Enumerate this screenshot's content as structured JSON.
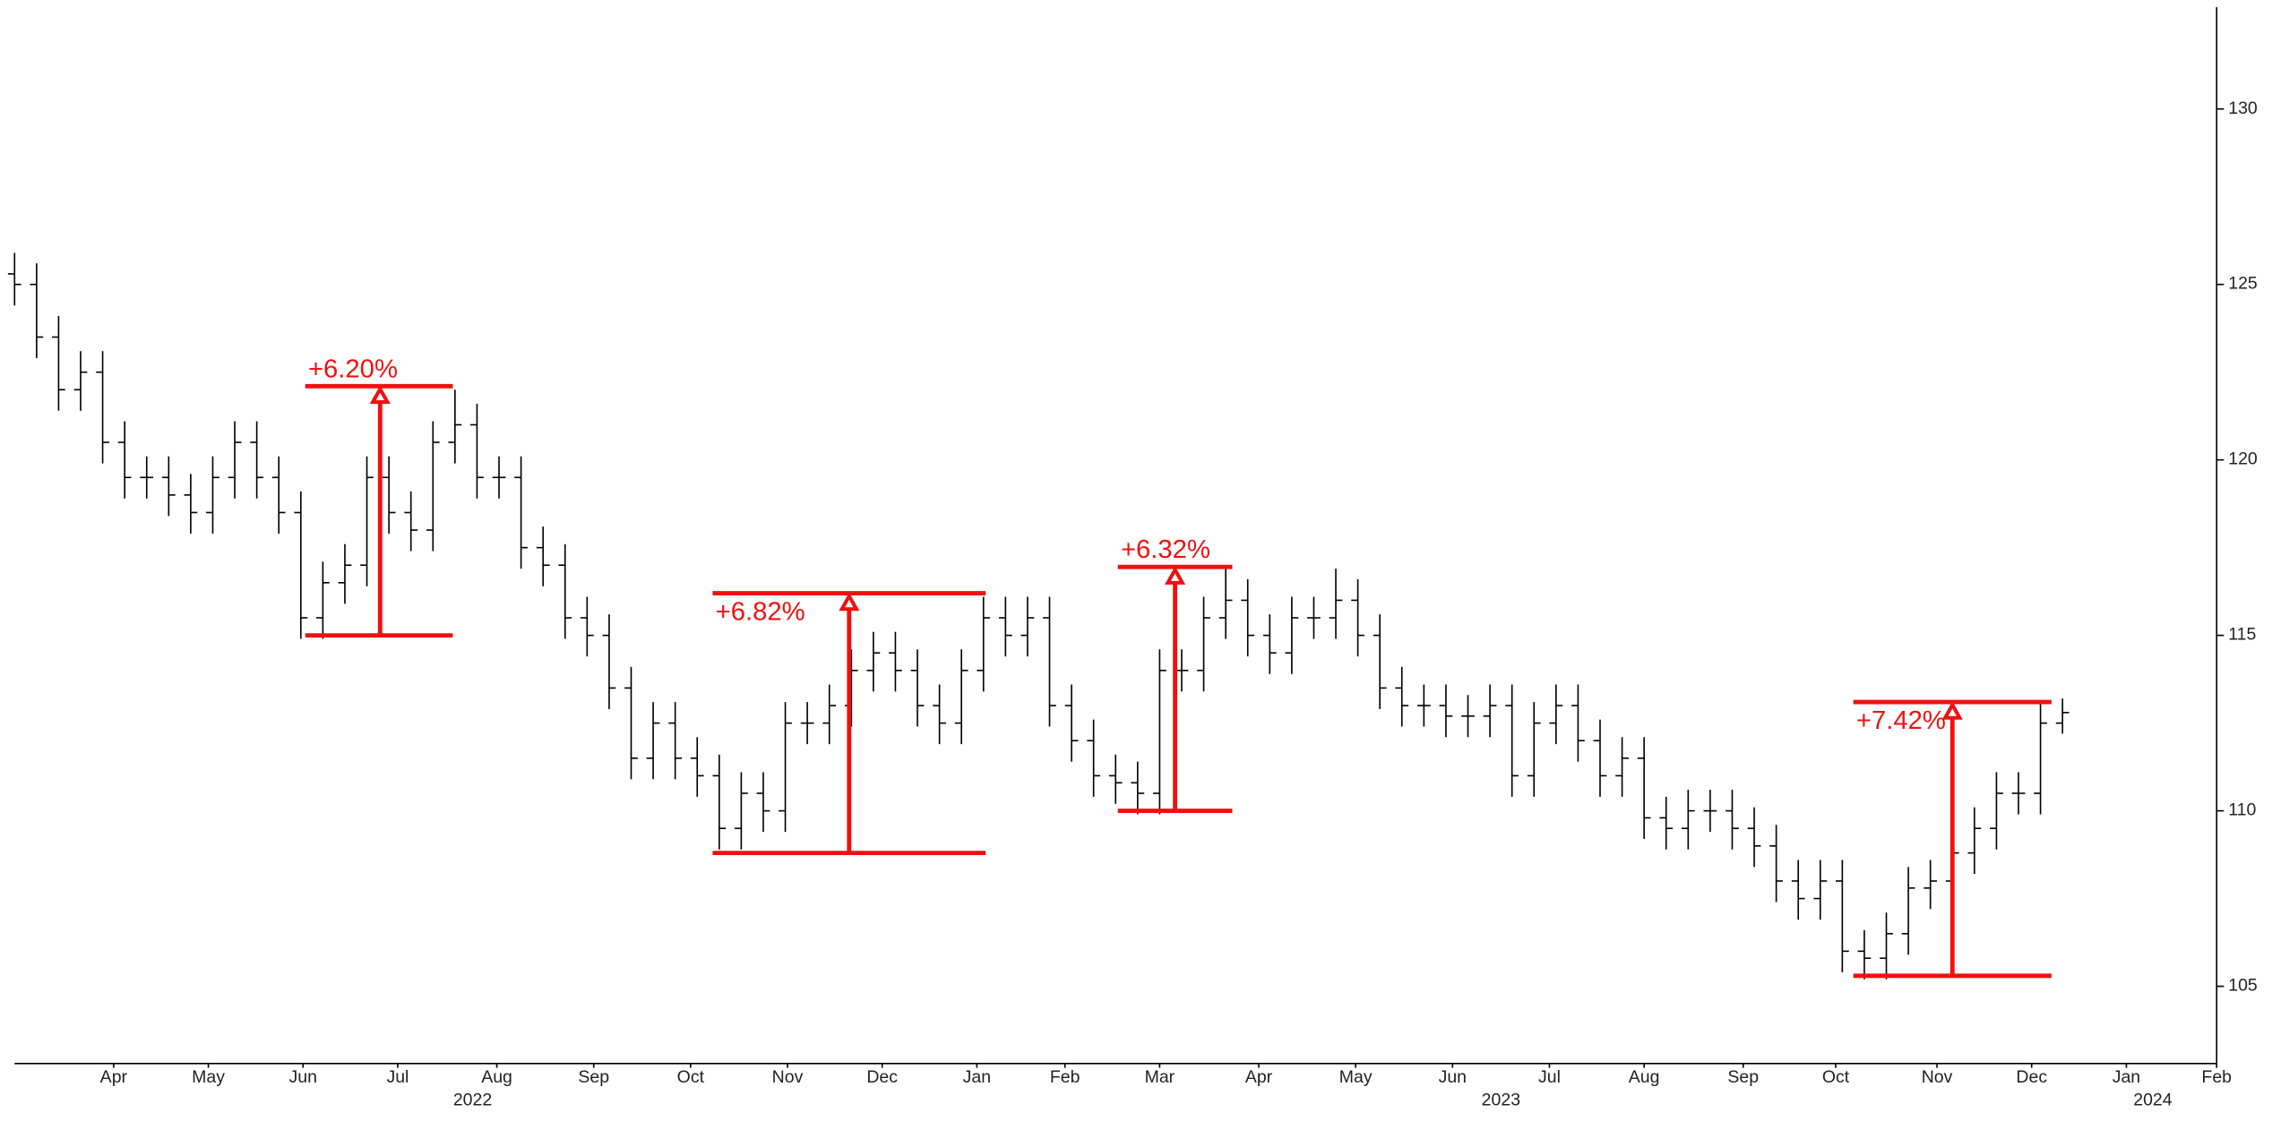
{
  "chart_data": {
    "type": "ohlc",
    "color": "#000000",
    "annotation_color": "#ee1111",
    "xlim": [
      0,
      100
    ],
    "ylim": [
      102.8,
      132.9
    ],
    "yticks": [
      105,
      110,
      115,
      120,
      125,
      130
    ],
    "xticks": [
      {
        "value": 4.5,
        "label": "Apr"
      },
      {
        "value": 8.8,
        "label": "May"
      },
      {
        "value": 13.1,
        "label": "Jun"
      },
      {
        "value": 17.4,
        "label": "Jul"
      },
      {
        "value": 21.9,
        "label": "Aug"
      },
      {
        "value": 26.3,
        "label": "Sep"
      },
      {
        "value": 30.7,
        "label": "Oct"
      },
      {
        "value": 35.1,
        "label": "Nov"
      },
      {
        "value": 39.4,
        "label": "Dec"
      },
      {
        "value": 43.7,
        "label": "Jan"
      },
      {
        "value": 47.7,
        "label": "Feb"
      },
      {
        "value": 52,
        "label": "Mar"
      },
      {
        "value": 56.5,
        "label": "Apr"
      },
      {
        "value": 60.9,
        "label": "May"
      },
      {
        "value": 65.3,
        "label": "Jun"
      },
      {
        "value": 69.7,
        "label": "Jul"
      },
      {
        "value": 74,
        "label": "Aug"
      },
      {
        "value": 78.5,
        "label": "Sep"
      },
      {
        "value": 82.7,
        "label": "Oct"
      },
      {
        "value": 87.3,
        "label": "Nov"
      },
      {
        "value": 91.6,
        "label": "Dec"
      },
      {
        "value": 95.9,
        "label": "Jan"
      },
      {
        "value": 100,
        "label": "Feb"
      }
    ],
    "year_ticks": [
      {
        "value": 20.8,
        "label": "2022"
      },
      {
        "value": 67.5,
        "label": "2023"
      },
      {
        "value": 97.1,
        "label": "2024"
      }
    ],
    "open": [
      125.3,
      125,
      123.5,
      122,
      122.5,
      120.5,
      119.5,
      119.5,
      119,
      118.5,
      119.5,
      120.5,
      119.5,
      118.5,
      115.5,
      116.5,
      117,
      119.5,
      118.5,
      118,
      120.5,
      121,
      119.5,
      119.5,
      117.5,
      117,
      115.5,
      115,
      113.5,
      111.5,
      112.5,
      111.5,
      111,
      109.5,
      110.5,
      110,
      112.5,
      112.5,
      113,
      114,
      114.5,
      114,
      113,
      112.5,
      114,
      115.5,
      115,
      115.5,
      113,
      112,
      111,
      110.8,
      110.5,
      114,
      114,
      115.5,
      116,
      115,
      114.5,
      115.5,
      115.5,
      116,
      115,
      113.5,
      113,
      113,
      112.7,
      112.7,
      113,
      111,
      112.5,
      113,
      112,
      111,
      111.5,
      109.8,
      109.5,
      110,
      110,
      109.5,
      109,
      108,
      107.5,
      108,
      106,
      105.8,
      106.5,
      107.8,
      108,
      108.8,
      109.5,
      110.5,
      110.5,
      112.5
    ],
    "high": [
      125.9,
      125.6,
      124.1,
      123.1,
      123.1,
      121.1,
      120.1,
      120.1,
      119.6,
      120.1,
      121.1,
      121.1,
      120.1,
      119.1,
      117.1,
      117.6,
      120.1,
      120.1,
      119.1,
      121.1,
      122,
      121.6,
      120.1,
      120.1,
      118.1,
      117.6,
      116.1,
      115.6,
      114.1,
      113.1,
      113.1,
      112.1,
      111.6,
      111.1,
      111.1,
      113.1,
      113.1,
      113.6,
      114.6,
      115.1,
      115.1,
      114.6,
      113.6,
      114.6,
      116.1,
      116.1,
      116.1,
      116.1,
      113.6,
      112.6,
      111.6,
      111.4,
      114.6,
      114.6,
      116.1,
      116.9,
      116.6,
      115.6,
      116.1,
      116.1,
      116.9,
      116.6,
      115.6,
      114.1,
      113.6,
      113.6,
      113.3,
      113.6,
      113.6,
      113.1,
      113.6,
      113.6,
      112.6,
      112.1,
      112.1,
      110.4,
      110.6,
      110.6,
      110.6,
      110.1,
      109.6,
      108.6,
      108.6,
      108.6,
      106.6,
      107.1,
      108.4,
      108.6,
      109.4,
      110.1,
      111.1,
      111.1,
      113.1,
      113.2
    ],
    "low": [
      124.4,
      122.9,
      121.4,
      121.4,
      119.9,
      118.9,
      118.9,
      118.4,
      117.9,
      117.9,
      118.9,
      118.9,
      117.9,
      114.9,
      114.9,
      115.9,
      116.4,
      117.9,
      117.4,
      117.4,
      119.9,
      118.9,
      118.9,
      116.9,
      116.4,
      114.9,
      114.4,
      112.9,
      110.9,
      110.9,
      110.9,
      110.4,
      108.9,
      108.9,
      109.4,
      109.4,
      111.9,
      111.9,
      112.4,
      113.4,
      113.4,
      112.4,
      111.9,
      111.9,
      113.4,
      114.4,
      114.4,
      112.4,
      111.4,
      110.4,
      110.2,
      109.9,
      109.9,
      113.4,
      113.4,
      114.9,
      114.4,
      113.9,
      113.9,
      114.9,
      114.9,
      114.4,
      112.9,
      112.4,
      112.4,
      112.1,
      112.1,
      112.1,
      110.4,
      110.4,
      111.9,
      111.4,
      110.4,
      110.4,
      109.2,
      108.9,
      108.9,
      109.4,
      108.9,
      108.4,
      107.4,
      106.9,
      106.9,
      105.4,
      105.2,
      105.2,
      105.9,
      107.2,
      107.4,
      108.2,
      108.9,
      109.9,
      109.9,
      112.2
    ],
    "close": [
      125,
      123.5,
      122,
      122.5,
      120.5,
      119.5,
      119.5,
      119,
      118.5,
      119.5,
      120.5,
      119.5,
      118.5,
      115.5,
      116.5,
      117,
      119.5,
      118.5,
      118,
      120.5,
      121,
      119.5,
      119.5,
      117.5,
      117,
      115.5,
      115,
      113.5,
      111.5,
      112.5,
      111.5,
      111,
      109.5,
      110.5,
      110,
      112.5,
      112.5,
      113,
      114,
      114.5,
      114,
      113,
      112.5,
      114,
      115.5,
      115,
      115.5,
      113,
      112,
      111,
      110.8,
      110.5,
      114,
      114,
      115.5,
      116,
      115,
      114.5,
      115.5,
      115.5,
      116,
      115,
      113.5,
      113,
      113,
      112.7,
      112.7,
      113,
      111,
      112.5,
      113,
      112,
      111,
      111.5,
      109.8,
      109.5,
      110,
      110,
      109.5,
      109,
      108,
      107.5,
      108,
      106,
      105.8,
      106.5,
      107.8,
      108,
      108.8,
      109.5,
      110.5,
      110.5,
      112.5,
      112.8
    ],
    "annotations": [
      {
        "text": "+6.20%",
        "low": 115,
        "high": 122.1,
        "x_start": 13.2,
        "x_end": 19.9,
        "x_arrow": 16.6,
        "label_side": "above"
      },
      {
        "text": "+6.82%",
        "low": 108.8,
        "high": 116.2,
        "x_start": 31.7,
        "x_end": 44.1,
        "x_arrow": 37.9,
        "label_side": "below"
      },
      {
        "text": "+6.32%",
        "low": 110,
        "high": 116.95,
        "x_start": 50.1,
        "x_end": 55.3,
        "x_arrow": 52.7,
        "label_side": "above"
      },
      {
        "text": "+7.42%",
        "low": 105.3,
        "high": 113.1,
        "x_start": 83.5,
        "x_end": 92.5,
        "x_arrow": 88,
        "label_side": "below"
      }
    ]
  }
}
